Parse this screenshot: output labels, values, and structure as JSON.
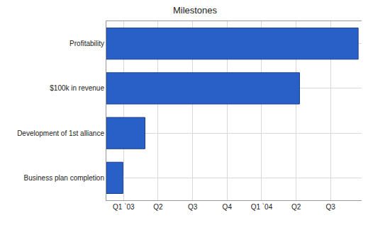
{
  "chart_data": {
    "type": "bar",
    "title": "Milestones",
    "orientation": "horizontal",
    "categories": [
      "Business plan completion",
      "Development of 1st alliance",
      "$100k in revenue",
      "Profitability"
    ],
    "values": [
      0.48,
      1.12,
      5.6,
      7.3
    ],
    "color": "#2860c8",
    "xlim": [
      0,
      7.4
    ],
    "xticks": [
      {
        "value": 0.5,
        "label": "Q1 `03"
      },
      {
        "value": 1.5,
        "label": "Q2"
      },
      {
        "value": 2.5,
        "label": "Q3"
      },
      {
        "value": 3.5,
        "label": "Q4"
      },
      {
        "value": 4.5,
        "label": "Q1 `04"
      },
      {
        "value": 5.5,
        "label": "Q2"
      },
      {
        "value": 6.5,
        "label": "Q3"
      }
    ],
    "grid": true
  }
}
